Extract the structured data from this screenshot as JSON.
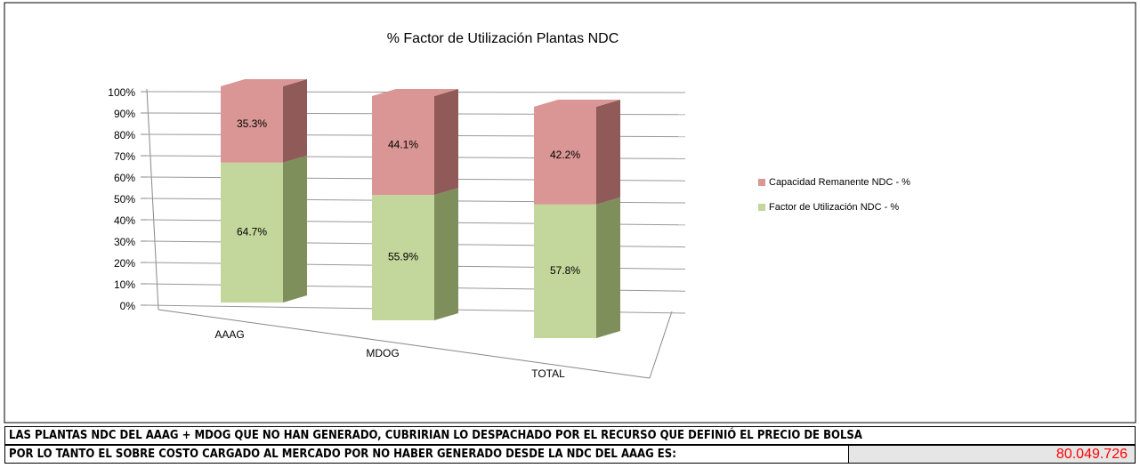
{
  "chart_data": {
    "type": "bar3d_stacked",
    "title": "% Factor de Utilización Plantas NDC",
    "categories": [
      "AAAG",
      "MDOG",
      "TOTAL"
    ],
    "series": [
      {
        "name": "Factor de Utilización NDC - %",
        "color": "#c3d69b",
        "side_color": "#7f8f5c",
        "values": [
          64.7,
          55.9,
          57.8
        ],
        "value_labels": [
          "64.7%",
          "55.9%",
          "57.8%"
        ]
      },
      {
        "name": "Capacidad Remanente NDC - %",
        "color": "#d99694",
        "side_color": "#8f5a58",
        "values": [
          35.3,
          44.1,
          42.2
        ],
        "value_labels": [
          "35.3%",
          "44.1%",
          "42.2%"
        ]
      }
    ],
    "ylim": [
      0,
      100
    ],
    "yticks": [
      {
        "value": 0,
        "label": "0%"
      },
      {
        "value": 10,
        "label": "10%"
      },
      {
        "value": 20,
        "label": "20%"
      },
      {
        "value": 30,
        "label": "30%"
      },
      {
        "value": 40,
        "label": "40%"
      },
      {
        "value": 50,
        "label": "50%"
      },
      {
        "value": 60,
        "label": "60%"
      },
      {
        "value": 70,
        "label": "70%"
      },
      {
        "value": 80,
        "label": "80%"
      },
      {
        "value": 90,
        "label": "90%"
      },
      {
        "value": 100,
        "label": "100%"
      }
    ],
    "grid": true,
    "legend": "right",
    "legend_order": "reverse"
  },
  "footer": {
    "rows": [
      {
        "text": "LAS PLANTAS NDC DEL AAAG + MDOG QUE NO HAN GENERADO, CUBRIRIAN LO DESPACHADO POR EL RECURSO QUE DEFINIÓ EL PRECIO DE BOLSA"
      },
      {
        "label": "POR LO TANTO EL SOBRE COSTO CARGADO AL MERCADO POR NO HABER GENERADO DESDE LA NDC DEL AAAG ES:",
        "value": "80.049.726"
      }
    ]
  }
}
